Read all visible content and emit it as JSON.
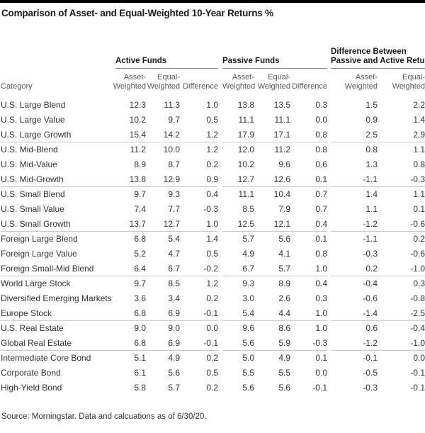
{
  "title": "Comparison of Asset- and Equal-Weighted 10-Year Returns %",
  "source_note": "Source: Morningstar. Data and calcuations as of 6/30/20.",
  "colors": {
    "top_bar": "#000000",
    "title_text": "#1a1a1a",
    "header_rule": "#8c8c8c",
    "row_rule": "#c9c9c9",
    "subheader_text": "#5a5a5a",
    "body_text": "#333333"
  },
  "chart_data": {
    "type": "table",
    "title": "Comparison of Asset- and Equal-Weighted 10-Year Returns %",
    "category_header": "Category",
    "column_groups": [
      {
        "label_lines": [
          "Active Funds"
        ],
        "subcolumns": [
          [
            "Asset-",
            "Weighted"
          ],
          [
            "Equal-",
            "Weighted"
          ],
          [
            "",
            "Difference"
          ]
        ]
      },
      {
        "label_lines": [
          "Passive Funds"
        ],
        "subcolumns": [
          [
            "Asset-",
            "Weighted"
          ],
          [
            "Equal-",
            "Weighted"
          ],
          [
            "",
            "Difference"
          ]
        ]
      },
      {
        "label_lines": [
          "Difference Between",
          "Passive and Active Returns"
        ],
        "subcolumns": [
          [
            "Asset-",
            "Weighted"
          ],
          [
            "Equal-",
            "Weighted"
          ]
        ]
      }
    ],
    "row_groups": [
      {
        "rows": [
          {
            "category": "U.S. Large Blend",
            "values": [
              "12.3",
              "11.3",
              "1.0",
              "13.8",
              "13.5",
              "0.3",
              "1.5",
              "2.2"
            ]
          },
          {
            "category": "U.S. Large Value",
            "values": [
              "10.2",
              "9.7",
              "0.5",
              "11.1",
              "11.1",
              "0.0",
              "0.9",
              "1.4"
            ]
          },
          {
            "category": "U.S. Large Growth",
            "values": [
              "15.4",
              "14.2",
              "1.2",
              "17.9",
              "17.1",
              "0.8",
              "2.5",
              "2.9"
            ]
          }
        ]
      },
      {
        "rows": [
          {
            "category": "U.S. Mid-Blend",
            "values": [
              "11.2",
              "10.0",
              "1.2",
              "12.0",
              "11.2",
              "0.8",
              "0.8",
              "1.1"
            ]
          },
          {
            "category": "U.S. Mid-Value",
            "values": [
              "8.9",
              "8.7",
              "0.2",
              "10.2",
              "9.6",
              "0.6",
              "1.3",
              "0.8"
            ]
          },
          {
            "category": "U.S. Mid-Growth",
            "values": [
              "13.8",
              "12.9",
              "0.9",
              "12.7",
              "12.6",
              "0.1",
              "-1.1",
              "-0.3"
            ]
          }
        ]
      },
      {
        "rows": [
          {
            "category": "U.S. Small Blend",
            "values": [
              "9.7",
              "9.3",
              "0.4",
              "11.1",
              "10.4",
              "0.7",
              "1.4",
              "1.1"
            ]
          },
          {
            "category": "U.S. Small Value",
            "values": [
              "7.4",
              "7.7",
              "-0.3",
              "8.5",
              "7.9",
              "0.7",
              "1.1",
              "0.1"
            ]
          },
          {
            "category": "U.S. Small Growth",
            "values": [
              "13.7",
              "12.7",
              "1.0",
              "12.5",
              "12.1",
              "0.4",
              "-1.2",
              "-0.6"
            ]
          }
        ]
      },
      {
        "rows": [
          {
            "category": "Foreign Large Blend",
            "values": [
              "6.8",
              "5.4",
              "1.4",
              "5.7",
              "5.6",
              "0.1",
              "-1.1",
              "0.2"
            ]
          },
          {
            "category": "Foreign Large Value",
            "values": [
              "5.2",
              "4.7",
              "0.5",
              "4.9",
              "4.1",
              "0.8",
              "-0.3",
              "-0.6"
            ]
          },
          {
            "category": "Foreign Small-Mid Blend",
            "values": [
              "6.4",
              "6.7",
              "-0.2",
              "6.7",
              "5.7",
              "1.0",
              "0.2",
              "-1.0"
            ]
          }
        ]
      },
      {
        "rows": [
          {
            "category": "World Large Stock",
            "values": [
              "9.7",
              "8.5",
              "1.2",
              "9.3",
              "8.9",
              "0.4",
              "-0.4",
              "0.3"
            ]
          },
          {
            "category": "Diversified Emerging Markets",
            "values": [
              "3.6",
              "3.4",
              "0.2",
              "3.0",
              "2.6",
              "0.3",
              "-0.6",
              "-0.8"
            ]
          },
          {
            "category": "Europe Stock",
            "values": [
              "6.8",
              "6.9",
              "-0.1",
              "5.4",
              "4.4",
              "1.0",
              "-1.4",
              "-2.5"
            ]
          }
        ]
      },
      {
        "rows": [
          {
            "category": "U.S. Real Estate",
            "values": [
              "9.0",
              "9.0",
              "0.0",
              "9.6",
              "8.6",
              "1.0",
              "0.6",
              "-0.4"
            ]
          },
          {
            "category": "Global Real Estate",
            "values": [
              "6.8",
              "6.9",
              "-0.1",
              "5.6",
              "5.9",
              "-0.3",
              "-1.2",
              "-1.0"
            ]
          }
        ]
      },
      {
        "rows": [
          {
            "category": "Intermediate Core Bond",
            "values": [
              "5.1",
              "4.9",
              "0.2",
              "5.0",
              "4.9",
              "0.1",
              "-0.1",
              "0.0"
            ]
          },
          {
            "category": "Corporate Bond",
            "values": [
              "6.1",
              "5.6",
              "0.5",
              "5.5",
              "5.5",
              "0.0",
              "-0.5",
              "-0.1"
            ]
          },
          {
            "category": "High-Yield Bond",
            "values": [
              "5.8",
              "5.7",
              "0.2",
              "5.6",
              "5.6",
              "-0.1",
              "-0.3",
              "-0.1"
            ]
          }
        ]
      }
    ]
  }
}
